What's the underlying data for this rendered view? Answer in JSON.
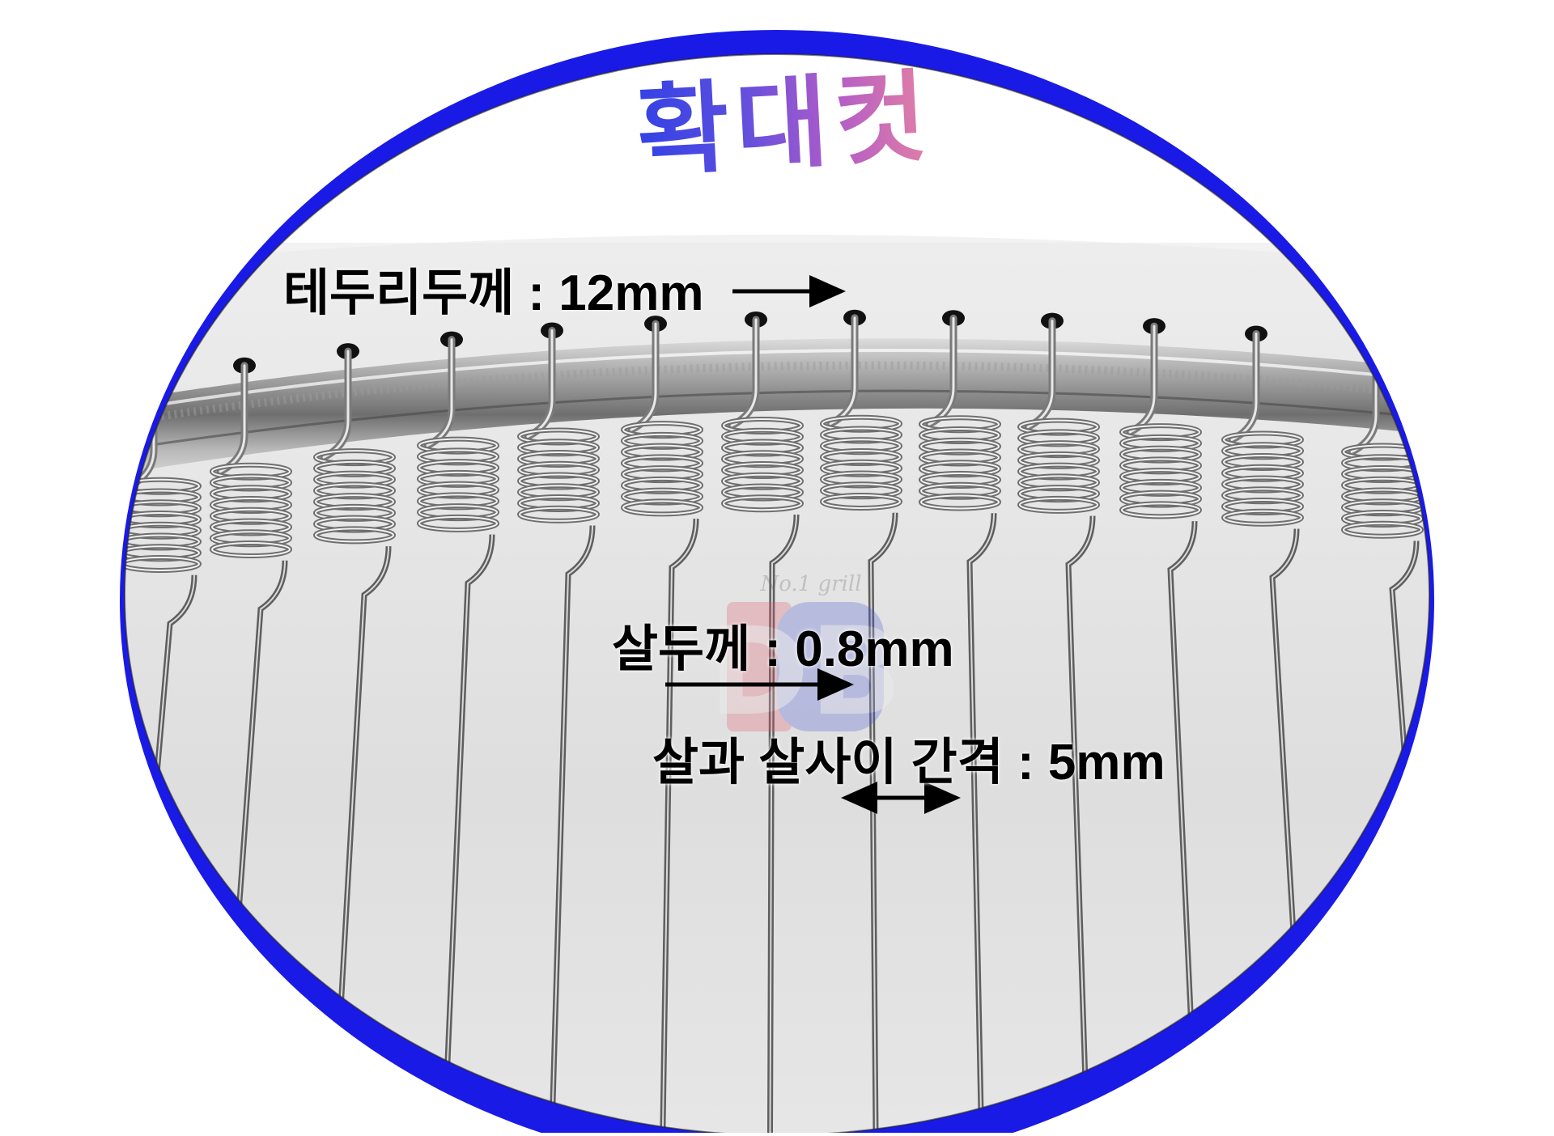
{
  "title": "확대컷",
  "annotations": {
    "rim_thickness": "테두리두께 : 12mm",
    "wire_thickness": "살두께 : 0.8mm",
    "wire_gap": "살과 살사이 간격 : 5mm"
  },
  "watermark": {
    "text": "No.1 grill",
    "letters": "DB"
  },
  "colors": {
    "frame_blue": "#1a1ae6",
    "title_start": "#2a3fe6",
    "title_end": "#f08a9a",
    "steel": "#8a8a8a",
    "arrow": "#000000"
  }
}
